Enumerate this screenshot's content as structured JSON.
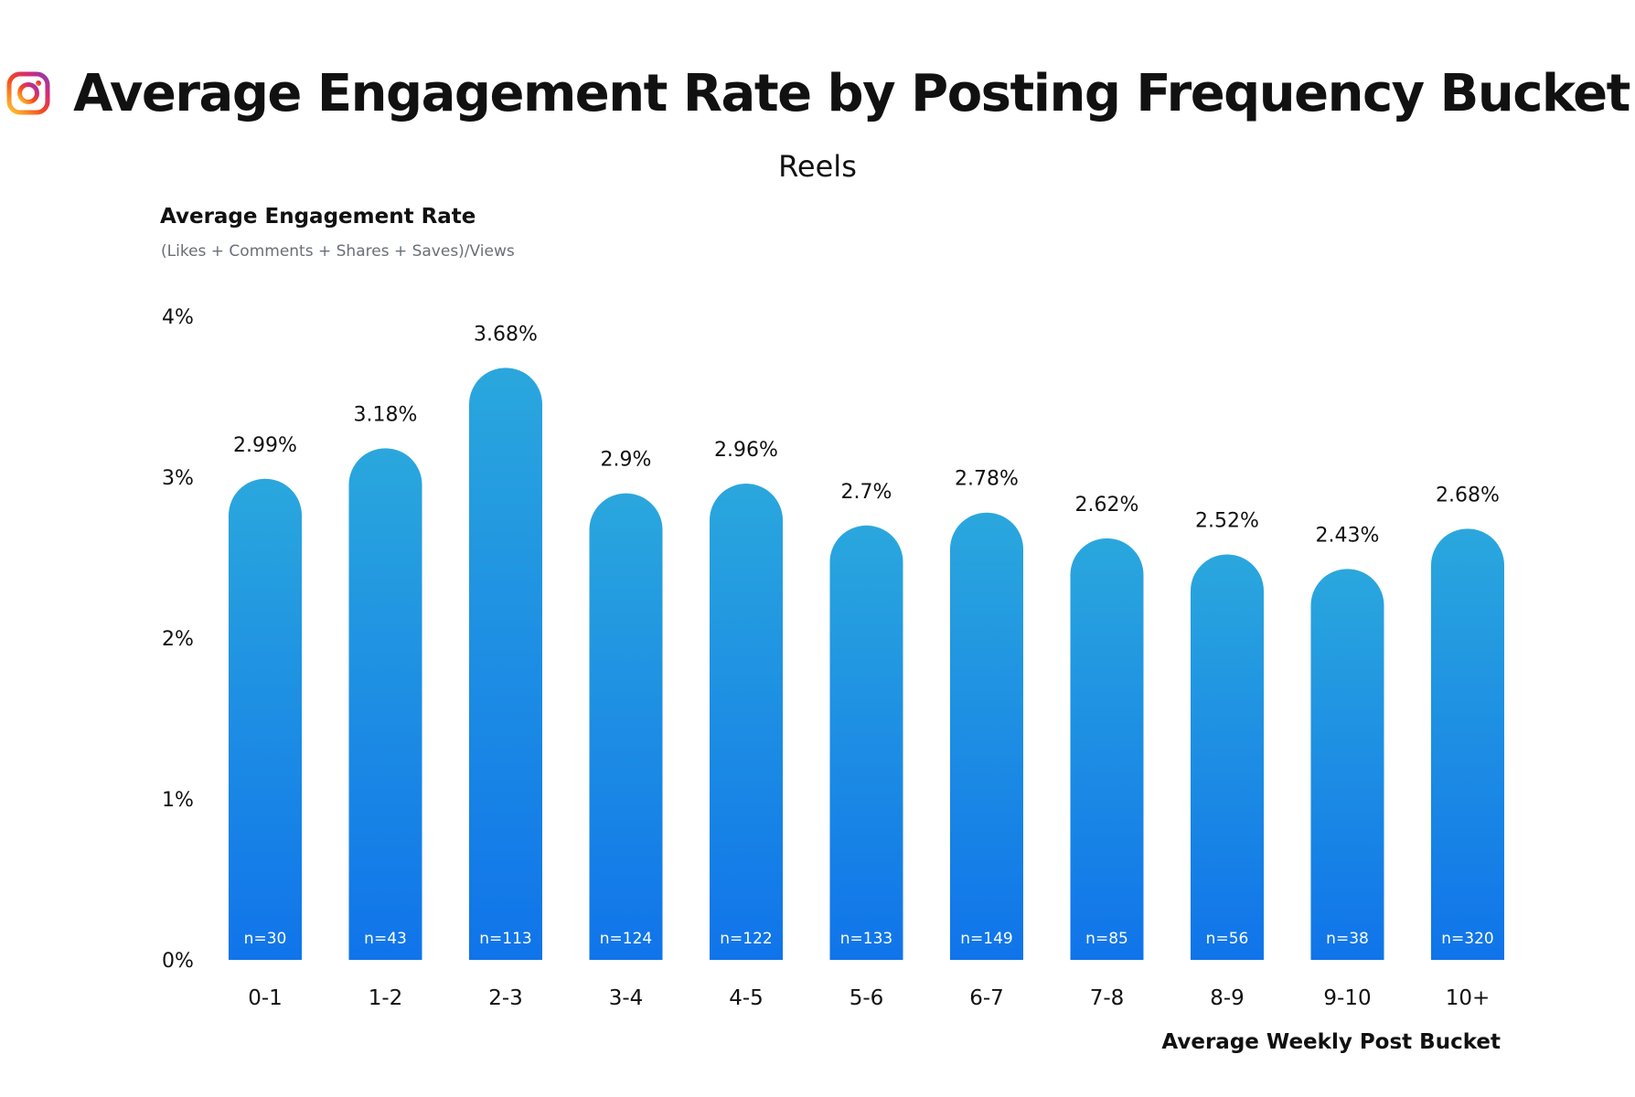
{
  "header": {
    "title": "Average Engagement Rate by Posting Frequency Bucket",
    "icon": "instagram-icon"
  },
  "chart_data": {
    "type": "bar",
    "title": "Average Engagement Rate by Posting Frequency Bucket",
    "subtitle": "Reels",
    "ylabel": "Average Engagement Rate",
    "ylabel_sub": "(Likes + Comments + Shares + Saves)/Views",
    "xlabel": "Average Weekly Post Bucket",
    "categories": [
      "0-1",
      "1-2",
      "2-3",
      "3-4",
      "4-5",
      "5-6",
      "6-7",
      "7-8",
      "8-9",
      "9-10",
      "10+"
    ],
    "values": [
      2.99,
      3.18,
      3.68,
      2.9,
      2.96,
      2.7,
      2.78,
      2.62,
      2.52,
      2.43,
      2.68
    ],
    "value_labels": [
      "2.99%",
      "3.18%",
      "3.68%",
      "2.9%",
      "2.96%",
      "2.7%",
      "2.78%",
      "2.62%",
      "2.52%",
      "2.43%",
      "2.68%"
    ],
    "sample_sizes": [
      "n=30",
      "n=43",
      "n=113",
      "n=124",
      "n=122",
      "n=133",
      "n=149",
      "n=85",
      "n=56",
      "n=38",
      "n=320"
    ],
    "yticks": [
      {
        "value": 0,
        "label": "0%"
      },
      {
        "value": 1,
        "label": "1%"
      },
      {
        "value": 2,
        "label": "2%"
      },
      {
        "value": 3,
        "label": "3%"
      },
      {
        "value": 4,
        "label": "4%"
      }
    ],
    "ylim": [
      0,
      4
    ],
    "grid": false,
    "colors": {
      "bar_top": "#2aa7dd",
      "bar_bottom": "#1074ea"
    }
  }
}
